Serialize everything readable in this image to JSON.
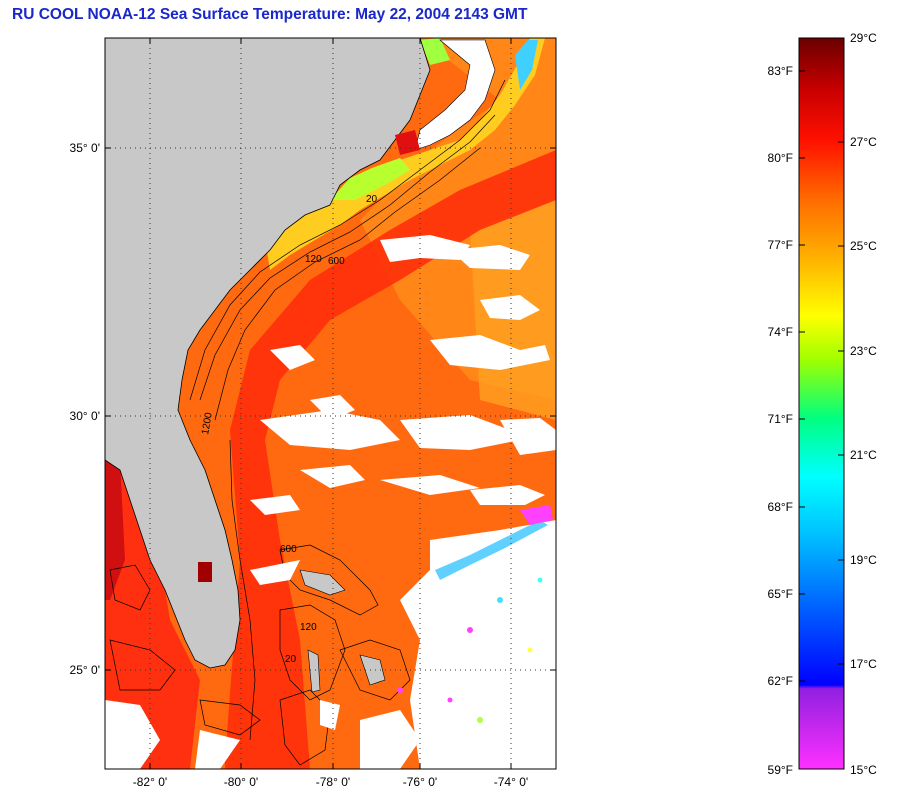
{
  "title": "RU COOL  NOAA-12  Sea Surface Temperature:  May 22, 2004 2143 GMT",
  "map": {
    "lat_labels": [
      "35° 0'",
      "30° 0'",
      "25° 0'"
    ],
    "lon_labels": [
      "-82° 0'",
      "-80° 0'",
      "-78° 0'",
      "-76° 0'",
      "-74° 0'"
    ],
    "contour_labels": [
      "20",
      "120",
      "600",
      "1200",
      "20",
      "120",
      "600"
    ],
    "colors": {
      "land": "#c8c8c8",
      "cloud": "#ffffff",
      "grid": "#333333"
    }
  },
  "colorbar": {
    "fahrenheit": [
      "83°F",
      "80°F",
      "77°F",
      "74°F",
      "71°F",
      "68°F",
      "65°F",
      "62°F",
      "59°F"
    ],
    "celsius": [
      "29°C",
      "27°C",
      "25°C",
      "23°C",
      "21°C",
      "19°C",
      "17°C",
      "15°C"
    ],
    "range_c": [
      15,
      29
    ],
    "colors": [
      "#ff20ff",
      "#a020e0",
      "#0000ff",
      "#0090ff",
      "#00ffff",
      "#00ff80",
      "#b0ff00",
      "#ffff00",
      "#ffa000",
      "#ff6000",
      "#ff0000",
      "#b00000",
      "#700000"
    ]
  }
}
